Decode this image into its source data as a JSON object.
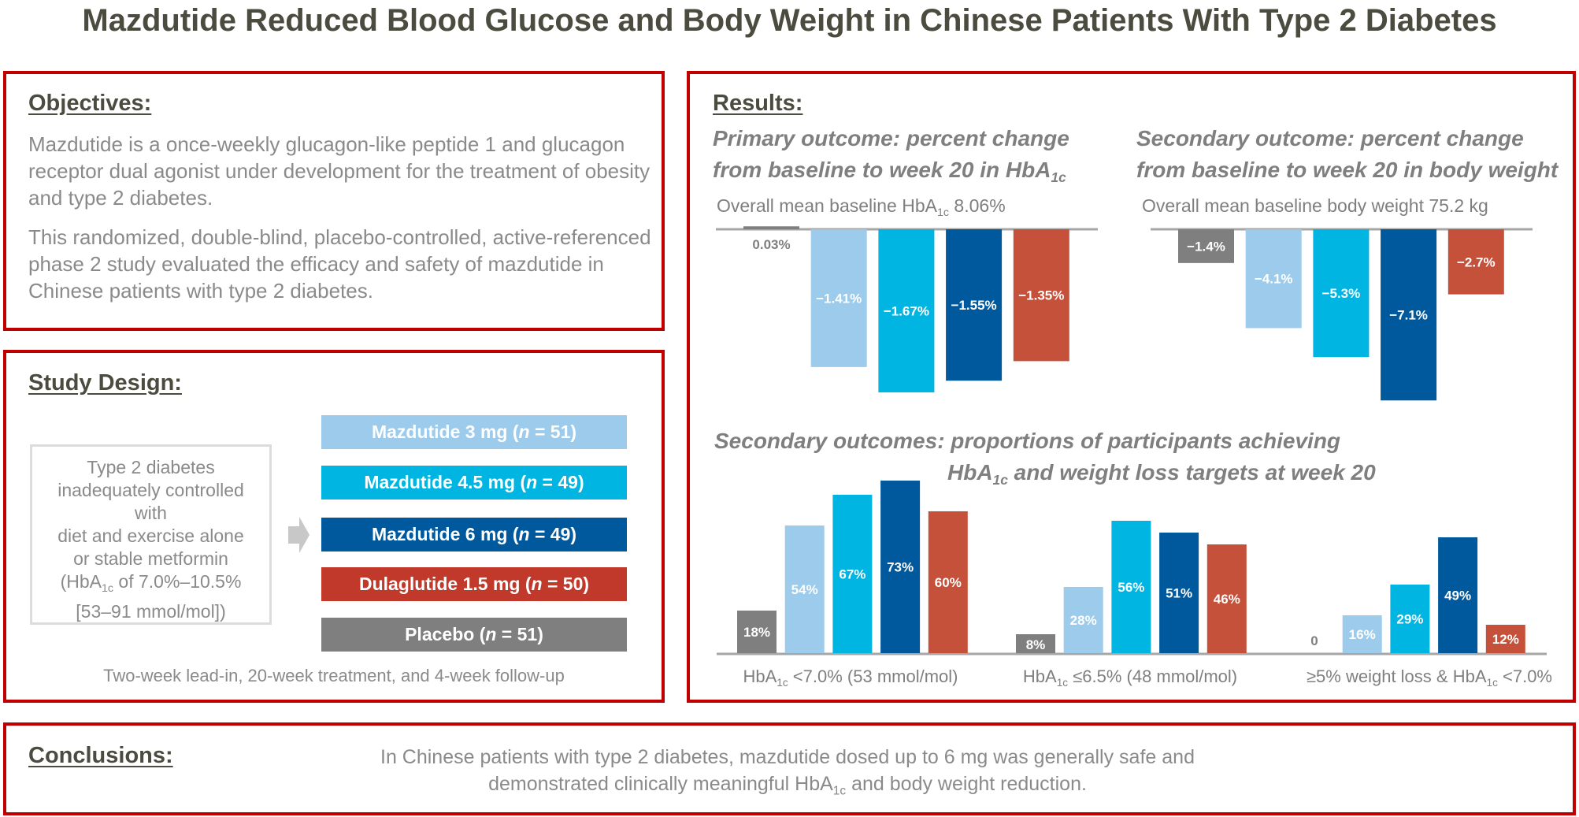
{
  "title": "Mazdutide Reduced Blood Glucose and Body Weight in Chinese Patients With Type 2 Diabetes",
  "colors": {
    "border": "#c00000",
    "mazdutide_3mg": "#9dcbeb",
    "mazdutide_4_5mg": "#00b5e2",
    "mazdutide_6mg": "#00599d",
    "dulaglutide": "#c5513a",
    "placebo": "#7f7f7f"
  },
  "objectives": {
    "heading": "Objectives:",
    "p1": "Mazdutide is a once-weekly glucagon-like peptide 1 and glucagon receptor dual agonist under development for the treatment of obesity and type 2 diabetes.",
    "p2": "This randomized, double-blind, placebo-controlled, active-referenced phase 2 study evaluated the efficacy and safety of mazdutide in Chinese patients with type 2 diabetes."
  },
  "design": {
    "heading": "Study Design:",
    "condition_lines": [
      "Type 2 diabetes",
      "inadequately controlled",
      "with",
      "diet and exercise alone",
      "or stable metformin"
    ],
    "condition_hba_pre": "(HbA",
    "condition_hba_sub": "1c",
    "condition_hba_post": " of 7.0%–10.5%",
    "condition_last": "[53–91 mmol/mol])",
    "arms": [
      {
        "name": "Mazdutide 3 mg (",
        "n": "n",
        "eq": " = 51)"
      },
      {
        "name": "Mazdutide 4.5 mg (",
        "n": "n",
        "eq": " = 49)"
      },
      {
        "name": "Mazdutide 6 mg (",
        "n": "n",
        "eq": " = 49)"
      },
      {
        "name": "Dulaglutide 1.5 mg (",
        "n": "n",
        "eq": " = 50)"
      },
      {
        "name": "Placebo (",
        "n": "n",
        "eq": " = 51)"
      }
    ],
    "footer": "Two-week lead-in, 20-week treatment, and 4-week follow-up"
  },
  "results": {
    "heading": "Results:"
  },
  "conclusions": {
    "heading": "Conclusions:",
    "line1": "In Chinese patients with type 2 diabetes, mazdutide dosed up to 6 mg was generally safe and",
    "line2_pre": "demonstrated clinically meaningful HbA",
    "line2_sub": "1c",
    "line2_post": " and body weight reduction."
  },
  "chart_data": [
    {
      "type": "bar",
      "title_line1": "Primary outcome: percent change",
      "title_line2_pre": "from baseline to week 20 in HbA",
      "title_line2_sub": "1c",
      "subtitle_pre": "Overall mean baseline HbA",
      "subtitle_sub": "1c",
      "subtitle_post": " 8.06%",
      "categories": [
        "Placebo",
        "Mazdutide 3 mg",
        "Mazdutide 4.5 mg",
        "Mazdutide 6 mg",
        "Dulaglutide 1.5 mg"
      ],
      "values": [
        0.03,
        -1.41,
        -1.67,
        -1.55,
        -1.35
      ],
      "labels": [
        "0.03%",
        "−1.41%",
        "−1.67%",
        "−1.55%",
        "−1.35%"
      ],
      "grid": false
    },
    {
      "type": "bar",
      "title_line1": "Secondary outcome: percent change",
      "title_line2": "from baseline to week 20 in body weight",
      "subtitle": "Overall mean baseline body weight 75.2 kg",
      "categories": [
        "Placebo",
        "Mazdutide 3 mg",
        "Mazdutide 4.5 mg",
        "Mazdutide 6 mg",
        "Dulaglutide 1.5 mg"
      ],
      "values": [
        -1.4,
        -4.1,
        -5.3,
        -7.1,
        -2.7
      ],
      "labels": [
        "−1.4%",
        "−4.1%",
        "−5.3%",
        "−7.1%",
        "−2.7%"
      ],
      "grid": false
    },
    {
      "type": "bar",
      "title_line1": "Secondary outcomes: proportions of participants achieving",
      "title_line2_pre": "HbA",
      "title_line2_sub": "1c",
      "title_line2_post": " and weight loss targets at week 20",
      "categories": [
        {
          "pre": "HbA",
          "sub": "1c",
          "post": " <7.0% (53 mmol/mol)"
        },
        {
          "pre": "HbA",
          "sub": "1c",
          "post": " ≤6.5% (48 mmol/mol)"
        },
        {
          "pre": "≥5% weight loss & HbA",
          "sub": "1c",
          "post": " <7.0%"
        }
      ],
      "series": [
        {
          "name": "Placebo",
          "values": [
            18,
            8,
            0
          ],
          "labels": [
            "18%",
            "8%",
            "0"
          ]
        },
        {
          "name": "Mazdutide 3 mg",
          "values": [
            54,
            28,
            16
          ],
          "labels": [
            "54%",
            "28%",
            "16%"
          ]
        },
        {
          "name": "Mazdutide 4.5 mg",
          "values": [
            67,
            56,
            29
          ],
          "labels": [
            "67%",
            "56%",
            "29%"
          ]
        },
        {
          "name": "Mazdutide 6 mg",
          "values": [
            73,
            51,
            49
          ],
          "labels": [
            "73%",
            "51%",
            "49%"
          ]
        },
        {
          "name": "Dulaglutide 1.5 mg",
          "values": [
            60,
            46,
            12
          ],
          "labels": [
            "60%",
            "46%",
            "12%"
          ]
        }
      ],
      "grid": false
    }
  ]
}
